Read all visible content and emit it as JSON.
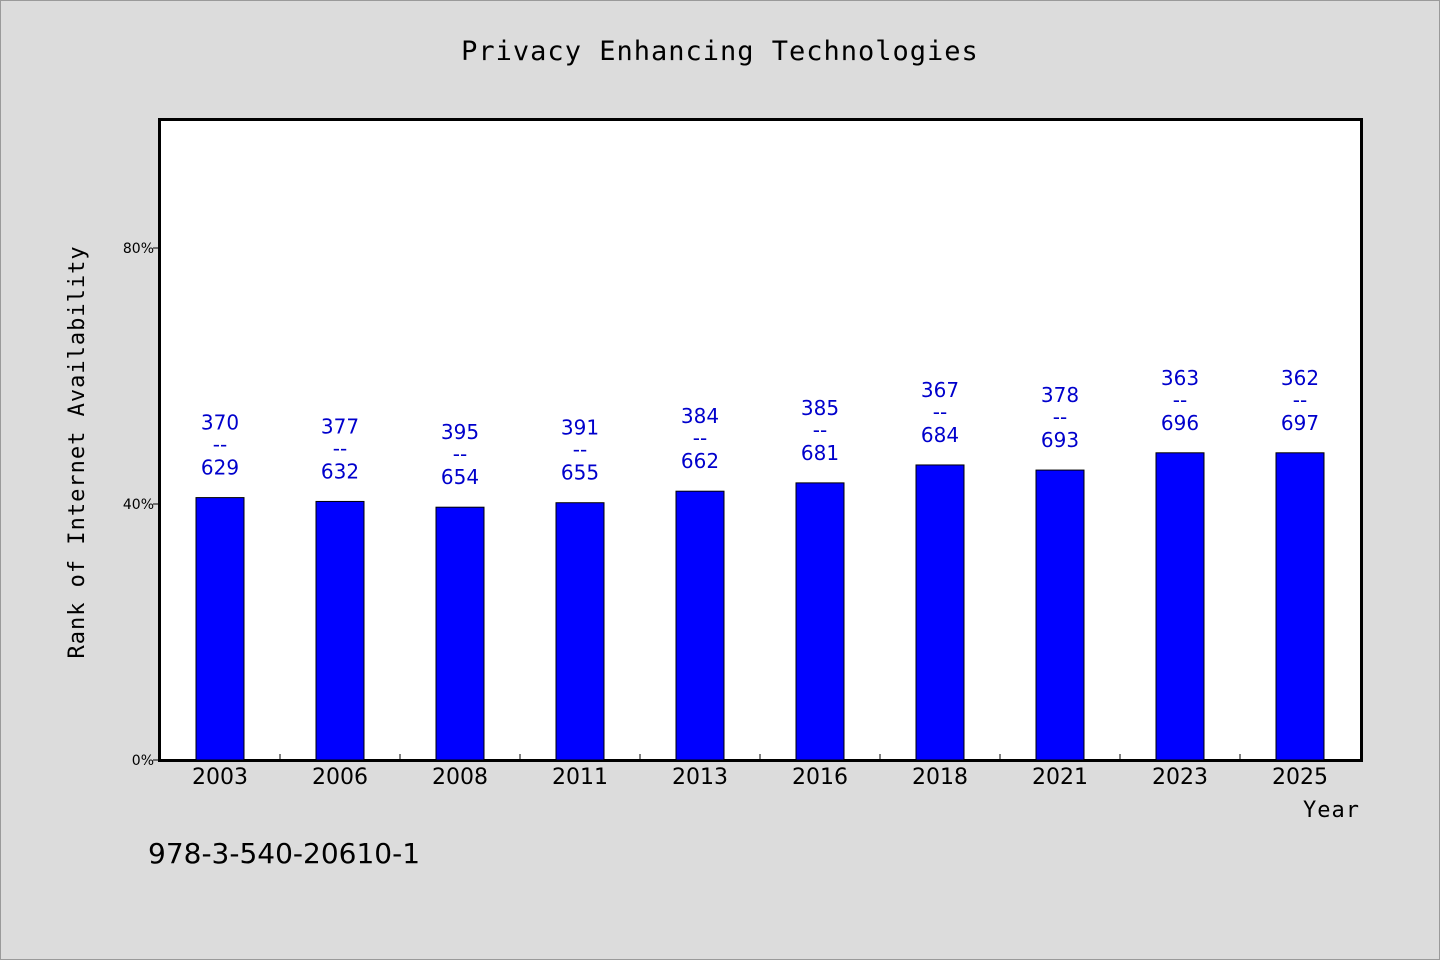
{
  "chart_data": {
    "type": "bar",
    "title": "Privacy Enhancing Technologies",
    "xlabel": "Year",
    "ylabel": "Rank of Internet Availability",
    "categories": [
      "2003",
      "2006",
      "2008",
      "2011",
      "2013",
      "2016",
      "2018",
      "2021",
      "2023",
      "2025"
    ],
    "values": [
      41,
      40.4,
      39.5,
      40.2,
      42,
      43.3,
      46.1,
      45.3,
      48,
      48
    ],
    "value_unit": "%",
    "bar_labels": [
      {
        "top": "370",
        "sep": "--",
        "bottom": "629"
      },
      {
        "top": "377",
        "sep": "--",
        "bottom": "632"
      },
      {
        "top": "395",
        "sep": "--",
        "bottom": "654"
      },
      {
        "top": "391",
        "sep": "--",
        "bottom": "655"
      },
      {
        "top": "384",
        "sep": "--",
        "bottom": "662"
      },
      {
        "top": "385",
        "sep": "--",
        "bottom": "681"
      },
      {
        "top": "367",
        "sep": "--",
        "bottom": "684"
      },
      {
        "top": "378",
        "sep": "--",
        "bottom": "693"
      },
      {
        "top": "363",
        "sep": "--",
        "bottom": "696"
      },
      {
        "top": "362",
        "sep": "--",
        "bottom": "697"
      }
    ],
    "ylim": [
      0,
      100
    ],
    "yticks": [
      0,
      40,
      80
    ],
    "ytick_labels": [
      "0%",
      "40%",
      "80%"
    ],
    "grid": false,
    "legend": "none",
    "colors": {
      "bar": "#0000ff",
      "bar_edge": "#000000",
      "data_label": "#0000cc",
      "plot_background": "#ffffff",
      "page_background": "#dcdcdc"
    }
  },
  "footer": {
    "text": "978-3-540-20610-1"
  }
}
